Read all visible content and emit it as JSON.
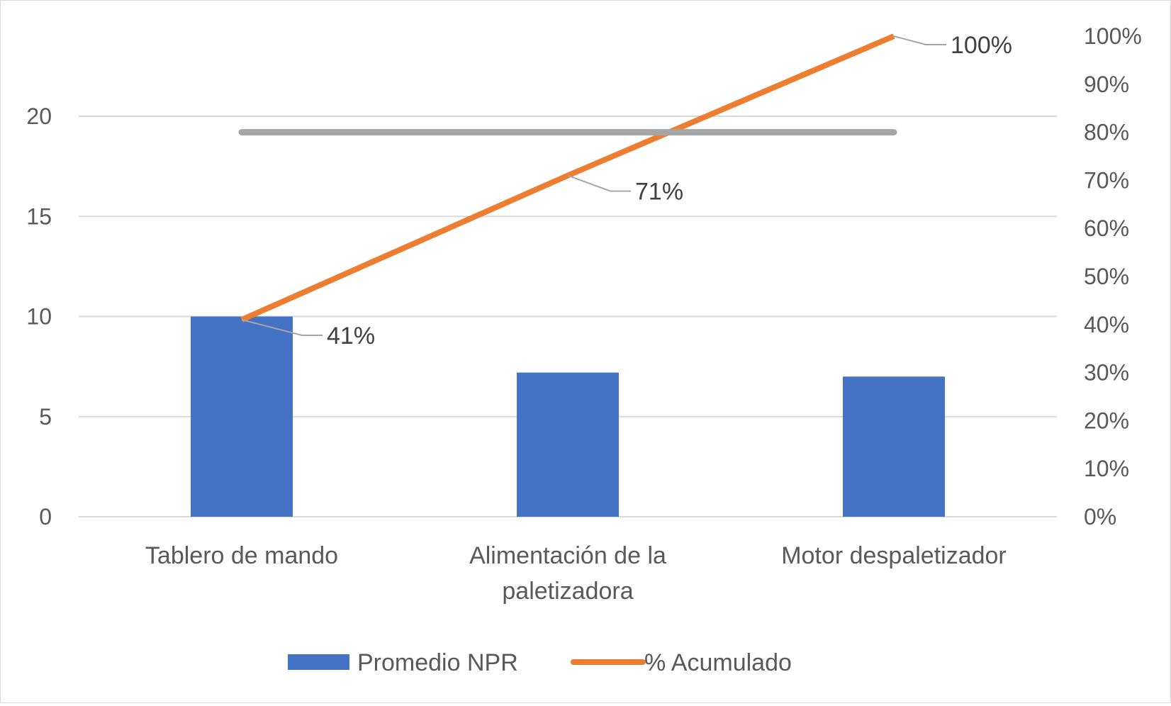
{
  "chart_data": {
    "type": "bar",
    "categories": [
      [
        "Tablero de mando"
      ],
      [
        "Alimentación de la",
        "paletizadora"
      ],
      [
        "Motor despaletizador"
      ]
    ],
    "series": [
      {
        "name": "Promedio NPR",
        "type": "bar",
        "axis": "left",
        "values": [
          10,
          7.2,
          7.0
        ],
        "color": "#4472C4"
      },
      {
        "name": "% Acumulado",
        "type": "line",
        "axis": "right",
        "values": [
          0.41,
          0.71,
          1.0
        ],
        "color": "#ED7D31",
        "data_labels": [
          "41%",
          "71%",
          "100%"
        ]
      },
      {
        "type": "line",
        "axis": "right",
        "values": [
          0.8,
          0.8,
          0.8
        ],
        "color": "#A5A5A5"
      }
    ],
    "y_left": {
      "range": [
        0,
        24
      ],
      "ticks": [
        0,
        5,
        10,
        15,
        20
      ],
      "tick_labels": [
        "0",
        "5",
        "10",
        "15",
        "20"
      ]
    },
    "y_right": {
      "range": [
        0,
        1
      ],
      "ticks": [
        0,
        0.1,
        0.2,
        0.3,
        0.4,
        0.5,
        0.6,
        0.7,
        0.8,
        0.9,
        1.0
      ],
      "tick_labels": [
        "0%",
        "10%",
        "20%",
        "30%",
        "40%",
        "50%",
        "60%",
        "70%",
        "80%",
        "90%",
        "100%"
      ]
    },
    "grid": true,
    "legend": {
      "position": "bottom",
      "entries": [
        {
          "label": "Promedio NPR",
          "kind": "bar",
          "color": "#4472C4"
        },
        {
          "label": "% Acumulado",
          "kind": "line",
          "color": "#ED7D31"
        }
      ]
    }
  }
}
